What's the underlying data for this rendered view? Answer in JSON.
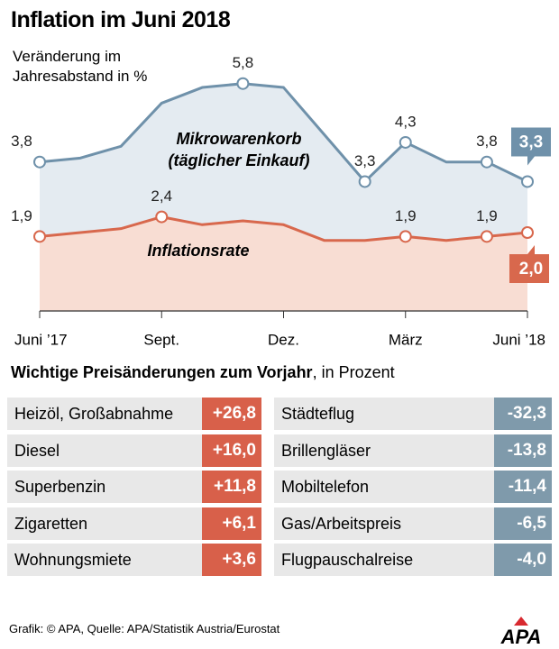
{
  "chart_data": {
    "type": "line",
    "title": "Inflation im Juni 2018",
    "subtitle": "Veränderung im Jahresabstand in %",
    "categories": [
      "Juni ’17",
      null,
      null,
      "Sept.",
      null,
      null,
      "Dez.",
      null,
      null,
      "März",
      null,
      null,
      "Juni ’18"
    ],
    "ylim": [
      0,
      6.5
    ],
    "series": [
      {
        "name": "Mikrowarenkorb (täglicher Einkauf)",
        "color": "#6f91aa",
        "fill": "#e4ebf1",
        "values": [
          3.8,
          3.9,
          4.2,
          5.3,
          5.7,
          5.8,
          5.7,
          4.5,
          3.3,
          4.3,
          3.8,
          3.8,
          3.3
        ],
        "value_labels": [
          "3,8",
          null,
          null,
          null,
          null,
          "5,8",
          null,
          null,
          "3,3",
          "4,3",
          null,
          "3,8",
          "3,3"
        ]
      },
      {
        "name": "Inflationsrate",
        "color": "#d8684d",
        "fill": "#f8ddd3",
        "values": [
          1.9,
          2.0,
          2.1,
          2.4,
          2.2,
          2.3,
          2.2,
          1.8,
          1.8,
          1.9,
          1.8,
          1.9,
          2.0
        ],
        "value_labels": [
          "1,9",
          null,
          null,
          "2,4",
          null,
          null,
          null,
          null,
          null,
          "1,9",
          null,
          "1,9",
          "2,0"
        ]
      }
    ]
  },
  "table": {
    "heading_bold": "Wichtige Preisänderungen zum Vorjahr",
    "heading_rest": ", in Prozent",
    "rows": [
      [
        "Heizöl, Großabnahme",
        "+26,8",
        "Städteflug",
        "-32,3"
      ],
      [
        "Diesel",
        "+16,0",
        "Brillengläser",
        "-13,8"
      ],
      [
        "Superbenzin",
        "+11,8",
        "Mobiltelefon",
        "-11,4"
      ],
      [
        "Zigaretten",
        "+6,1",
        "Gas/Arbeitspreis",
        "-6,5"
      ],
      [
        "Wohnungsmiete",
        "+3,6",
        "Flugpauschalreise",
        "-4,0"
      ]
    ]
  },
  "footer": {
    "source": "Grafik: © APA, Quelle: APA/Statistik Austria/Eurostat",
    "logo": "APA"
  }
}
